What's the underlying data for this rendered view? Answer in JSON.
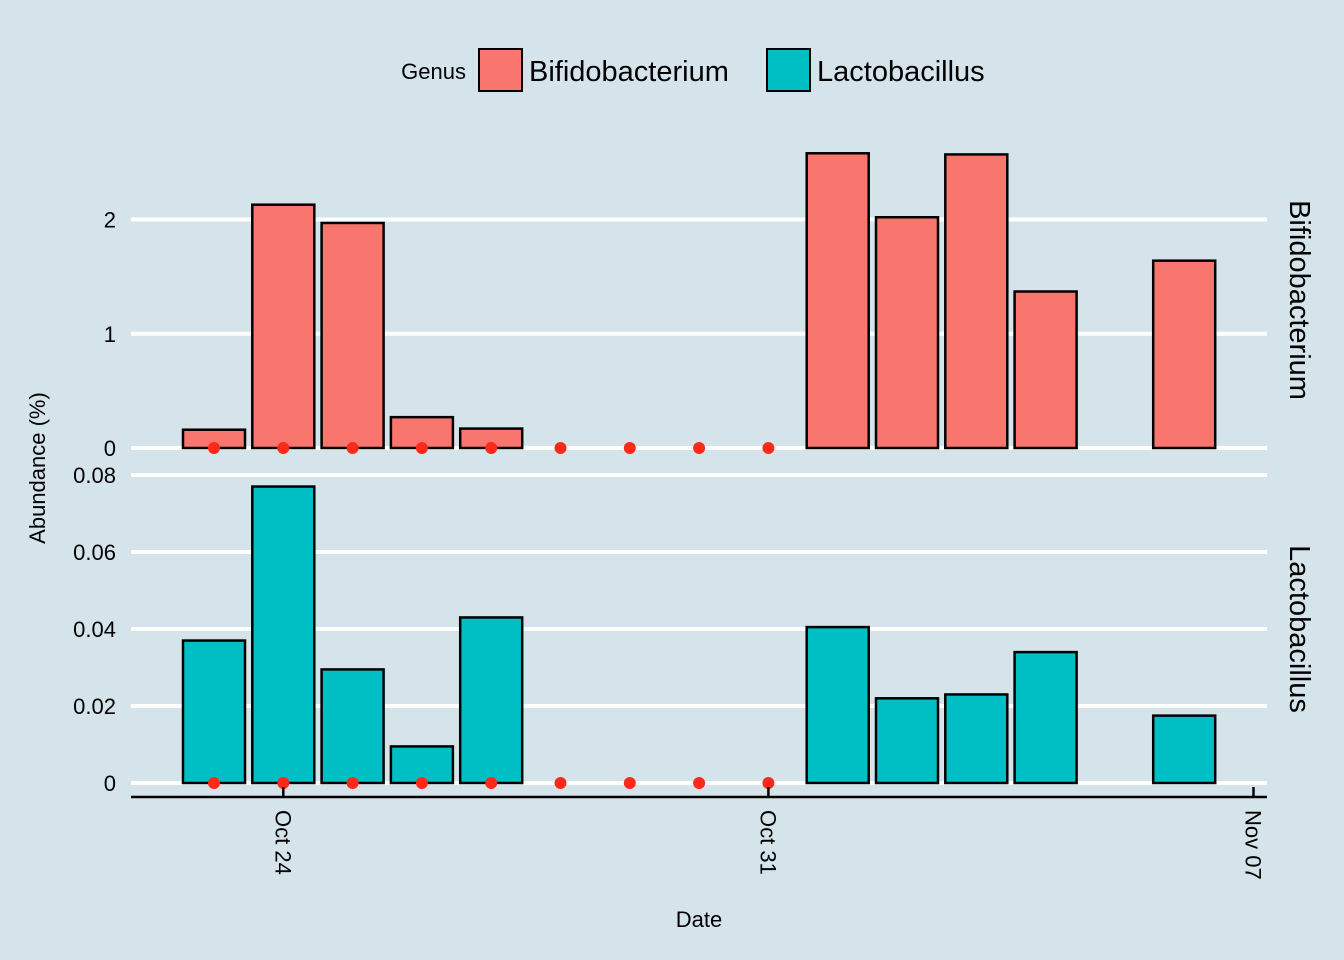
{
  "chart_data": {
    "type": "bar",
    "xlabel": "Date",
    "ylabel": "Abundance (%)",
    "legend": {
      "title": "Genus",
      "position": "top",
      "entries": [
        {
          "name": "Bifidobacterium",
          "color": "#f8766d"
        },
        {
          "name": "Lactobacillus",
          "color": "#00bfc4"
        }
      ]
    },
    "x_ticks": [
      "Oct 24",
      "Oct 31",
      "Nov 07"
    ],
    "dates": [
      "2015-10-23",
      "2015-10-24",
      "2015-10-25",
      "2015-10-26",
      "2015-10-27",
      "2015-10-28",
      "2015-10-29",
      "2015-10-30",
      "2015-10-31",
      "2015-11-01",
      "2015-11-02",
      "2015-11-03",
      "2015-11-04",
      "2015-11-05",
      "2015-11-06"
    ],
    "panels": [
      {
        "name": "Bifidobacterium",
        "color": "#f8766d",
        "ylim": [
          0,
          2.6
        ],
        "y_ticks": [
          0,
          1,
          2
        ],
        "y_tick_labels": [
          "0",
          "1",
          "2"
        ],
        "values": [
          0.16,
          2.13,
          1.97,
          0.27,
          0.17,
          0,
          0,
          0,
          0,
          2.58,
          2.02,
          2.57,
          1.37,
          null,
          1.64
        ]
      },
      {
        "name": "Lactobacillus",
        "color": "#00bfc4",
        "ylim": [
          0,
          0.08
        ],
        "y_ticks": [
          0,
          0.02,
          0.04,
          0.06,
          0.08
        ],
        "y_tick_labels": [
          "0",
          "0.02",
          "0.04",
          "0.06",
          "0.08"
        ],
        "values": [
          0.037,
          0.077,
          0.0295,
          0.0095,
          0.043,
          0,
          0,
          0,
          0,
          0.0405,
          0.022,
          0.023,
          0.034,
          null,
          0.0175
        ]
      }
    ],
    "zero_markers": {
      "color": "#ff2a1a",
      "dates": [
        "2015-10-23",
        "2015-10-24",
        "2015-10-25",
        "2015-10-26",
        "2015-10-27",
        "2015-10-28",
        "2015-10-29",
        "2015-10-30",
        "2015-10-31"
      ]
    },
    "grid": true
  }
}
